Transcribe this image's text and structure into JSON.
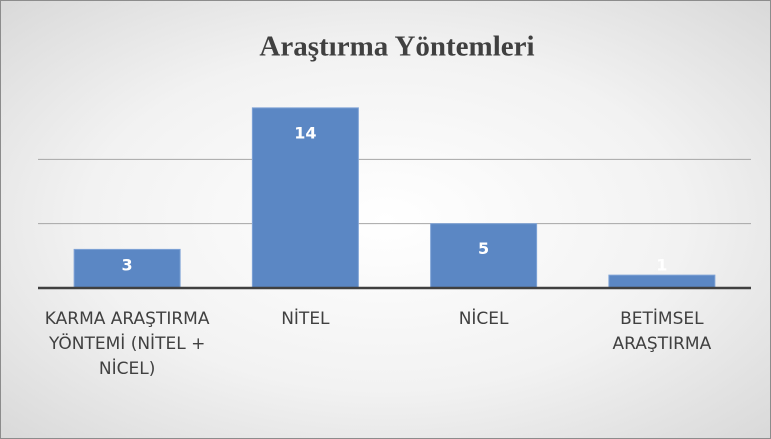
{
  "chart_data": {
    "type": "bar",
    "title": "Araştırma Yöntemleri",
    "categories": [
      "KARMA ARAŞTIRMA YÖNTEMİ (NİTEL + NİCEL)",
      "NİTEL",
      "NİCEL",
      "BETİMSEL ARAŞTIRMA"
    ],
    "values": [
      3,
      14,
      5,
      1
    ],
    "color": "#5b87c4",
    "ylim": [
      0,
      15
    ],
    "yticks": [
      0,
      5,
      10
    ],
    "grid": true
  }
}
